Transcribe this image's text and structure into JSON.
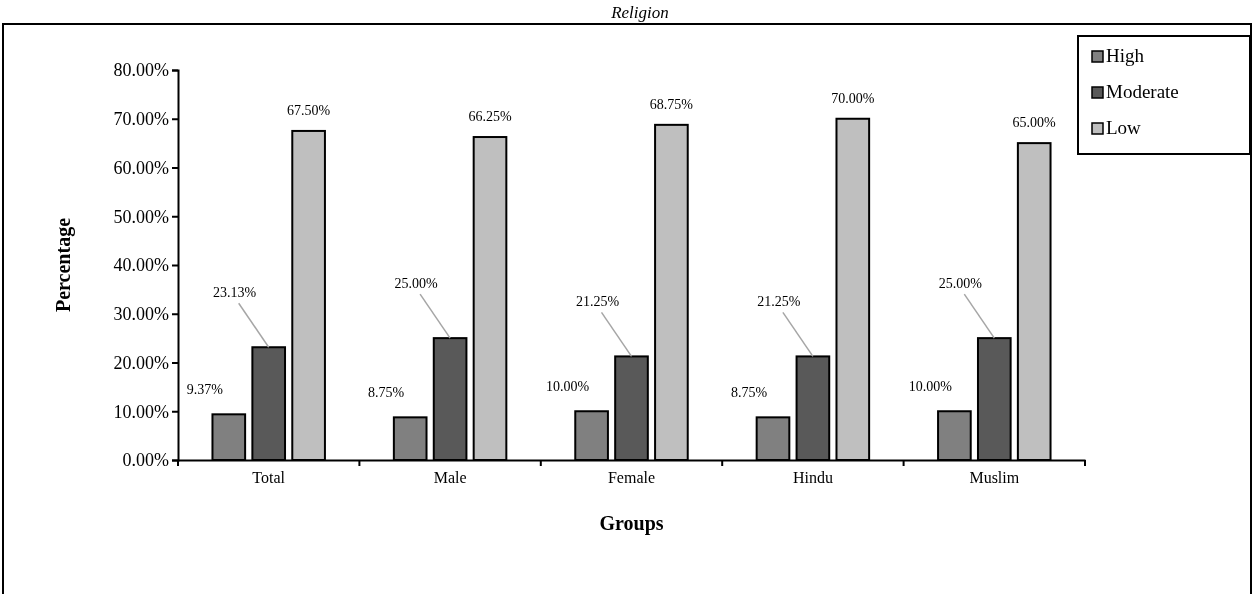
{
  "chart_data": {
    "type": "bar",
    "title": "Religion",
    "xlabel": "Groups",
    "ylabel": "Percentage",
    "categories": [
      "Total",
      "Male",
      "Female",
      "Hindu",
      "Muslim"
    ],
    "series": [
      {
        "name": "High",
        "color": "#808080",
        "values": [
          9.37,
          8.75,
          10.0,
          8.75,
          10.0
        ],
        "value_labels": [
          "9.37%",
          "8.75%",
          "10.00%",
          "8.75%",
          "10.00%"
        ]
      },
      {
        "name": "Moderate",
        "color": "#595959",
        "values": [
          23.13,
          25.0,
          21.25,
          21.25,
          25.0
        ],
        "value_labels": [
          "23.13%",
          "25.00%",
          "21.25%",
          "21.25%",
          "25.00%"
        ]
      },
      {
        "name": "Low",
        "color": "#bfbfbf",
        "values": [
          67.5,
          66.25,
          68.75,
          70.0,
          65.0
        ],
        "value_labels": [
          "67.50%",
          "66.25%",
          "68.75%",
          "70.00%",
          "65.00%"
        ]
      }
    ],
    "ylim": [
      0,
      80
    ],
    "yticks": [
      {
        "value": 0,
        "label": "0.00%"
      },
      {
        "value": 10,
        "label": "10.00%"
      },
      {
        "value": 20,
        "label": "20.00%"
      },
      {
        "value": 30,
        "label": "30.00%"
      },
      {
        "value": 40,
        "label": "40.00%"
      },
      {
        "value": 50,
        "label": "50.00%"
      },
      {
        "value": 60,
        "label": "60.00%"
      },
      {
        "value": 70,
        "label": "70.00%"
      },
      {
        "value": 80,
        "label": "80.00%"
      }
    ],
    "grid": false,
    "legend": "top right"
  }
}
